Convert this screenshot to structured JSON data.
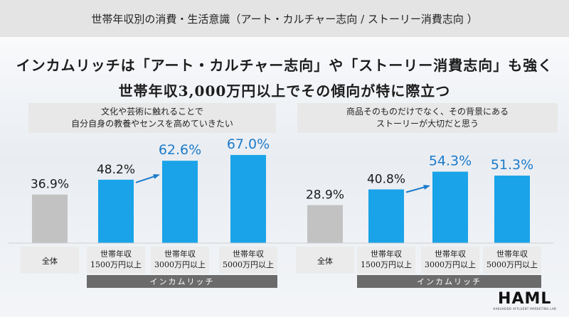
{
  "header": {
    "title": "世帯年収別の消費・生活意識（アート・カルチャー志向 / ストーリー消費志向 ）"
  },
  "headline": {
    "line1": "インカムリッチは「アート・カルチャー志向」や「ストーリー消費志向」も強く",
    "line2": "世帯年収3,000万円以上でその傾向が特に際立つ"
  },
  "colors": {
    "highlight_bar": "#1aa3e8",
    "baseline_bar": "#c2c2c2",
    "highlight_text": "#1c7ac9",
    "group_band": "#6b6b6b"
  },
  "chart_data": [
    {
      "type": "bar",
      "title_lines": [
        "文化や芸術に触れることで",
        "自分自身の教養やセンスを高めていきたい"
      ],
      "categories": [
        [
          "全体"
        ],
        [
          "世帯年収",
          "1500万円以上"
        ],
        [
          "世帯年収",
          "3000万円以上"
        ],
        [
          "世帯年収",
          "5000万円以上"
        ]
      ],
      "values": [
        36.9,
        48.2,
        62.6,
        67.0
      ],
      "labels": [
        "36.9%",
        "48.2%",
        "62.6%",
        "67.0%"
      ],
      "highlighted": [
        false,
        false,
        true,
        true
      ],
      "group_label": "インカムリッチ",
      "ylim": [
        0,
        100
      ]
    },
    {
      "type": "bar",
      "title_lines": [
        "商品そのものだけでなく、その背景にある",
        "ストーリーが大切だと思う"
      ],
      "categories": [
        [
          "全体"
        ],
        [
          "世帯年収",
          "1500万円以上"
        ],
        [
          "世帯年収",
          "3000万円以上"
        ],
        [
          "世帯年収",
          "5000万円以上"
        ]
      ],
      "values": [
        28.9,
        40.8,
        54.3,
        51.3
      ],
      "labels": [
        "28.9%",
        "40.8%",
        "54.3%",
        "51.3%"
      ],
      "highlighted": [
        false,
        false,
        true,
        true
      ],
      "group_label": "インカムリッチ",
      "ylim": [
        0,
        100
      ]
    }
  ],
  "brand": {
    "logo": "HAML",
    "tagline": "HAKUHODO AFFLUENT MARKETING LAB"
  }
}
